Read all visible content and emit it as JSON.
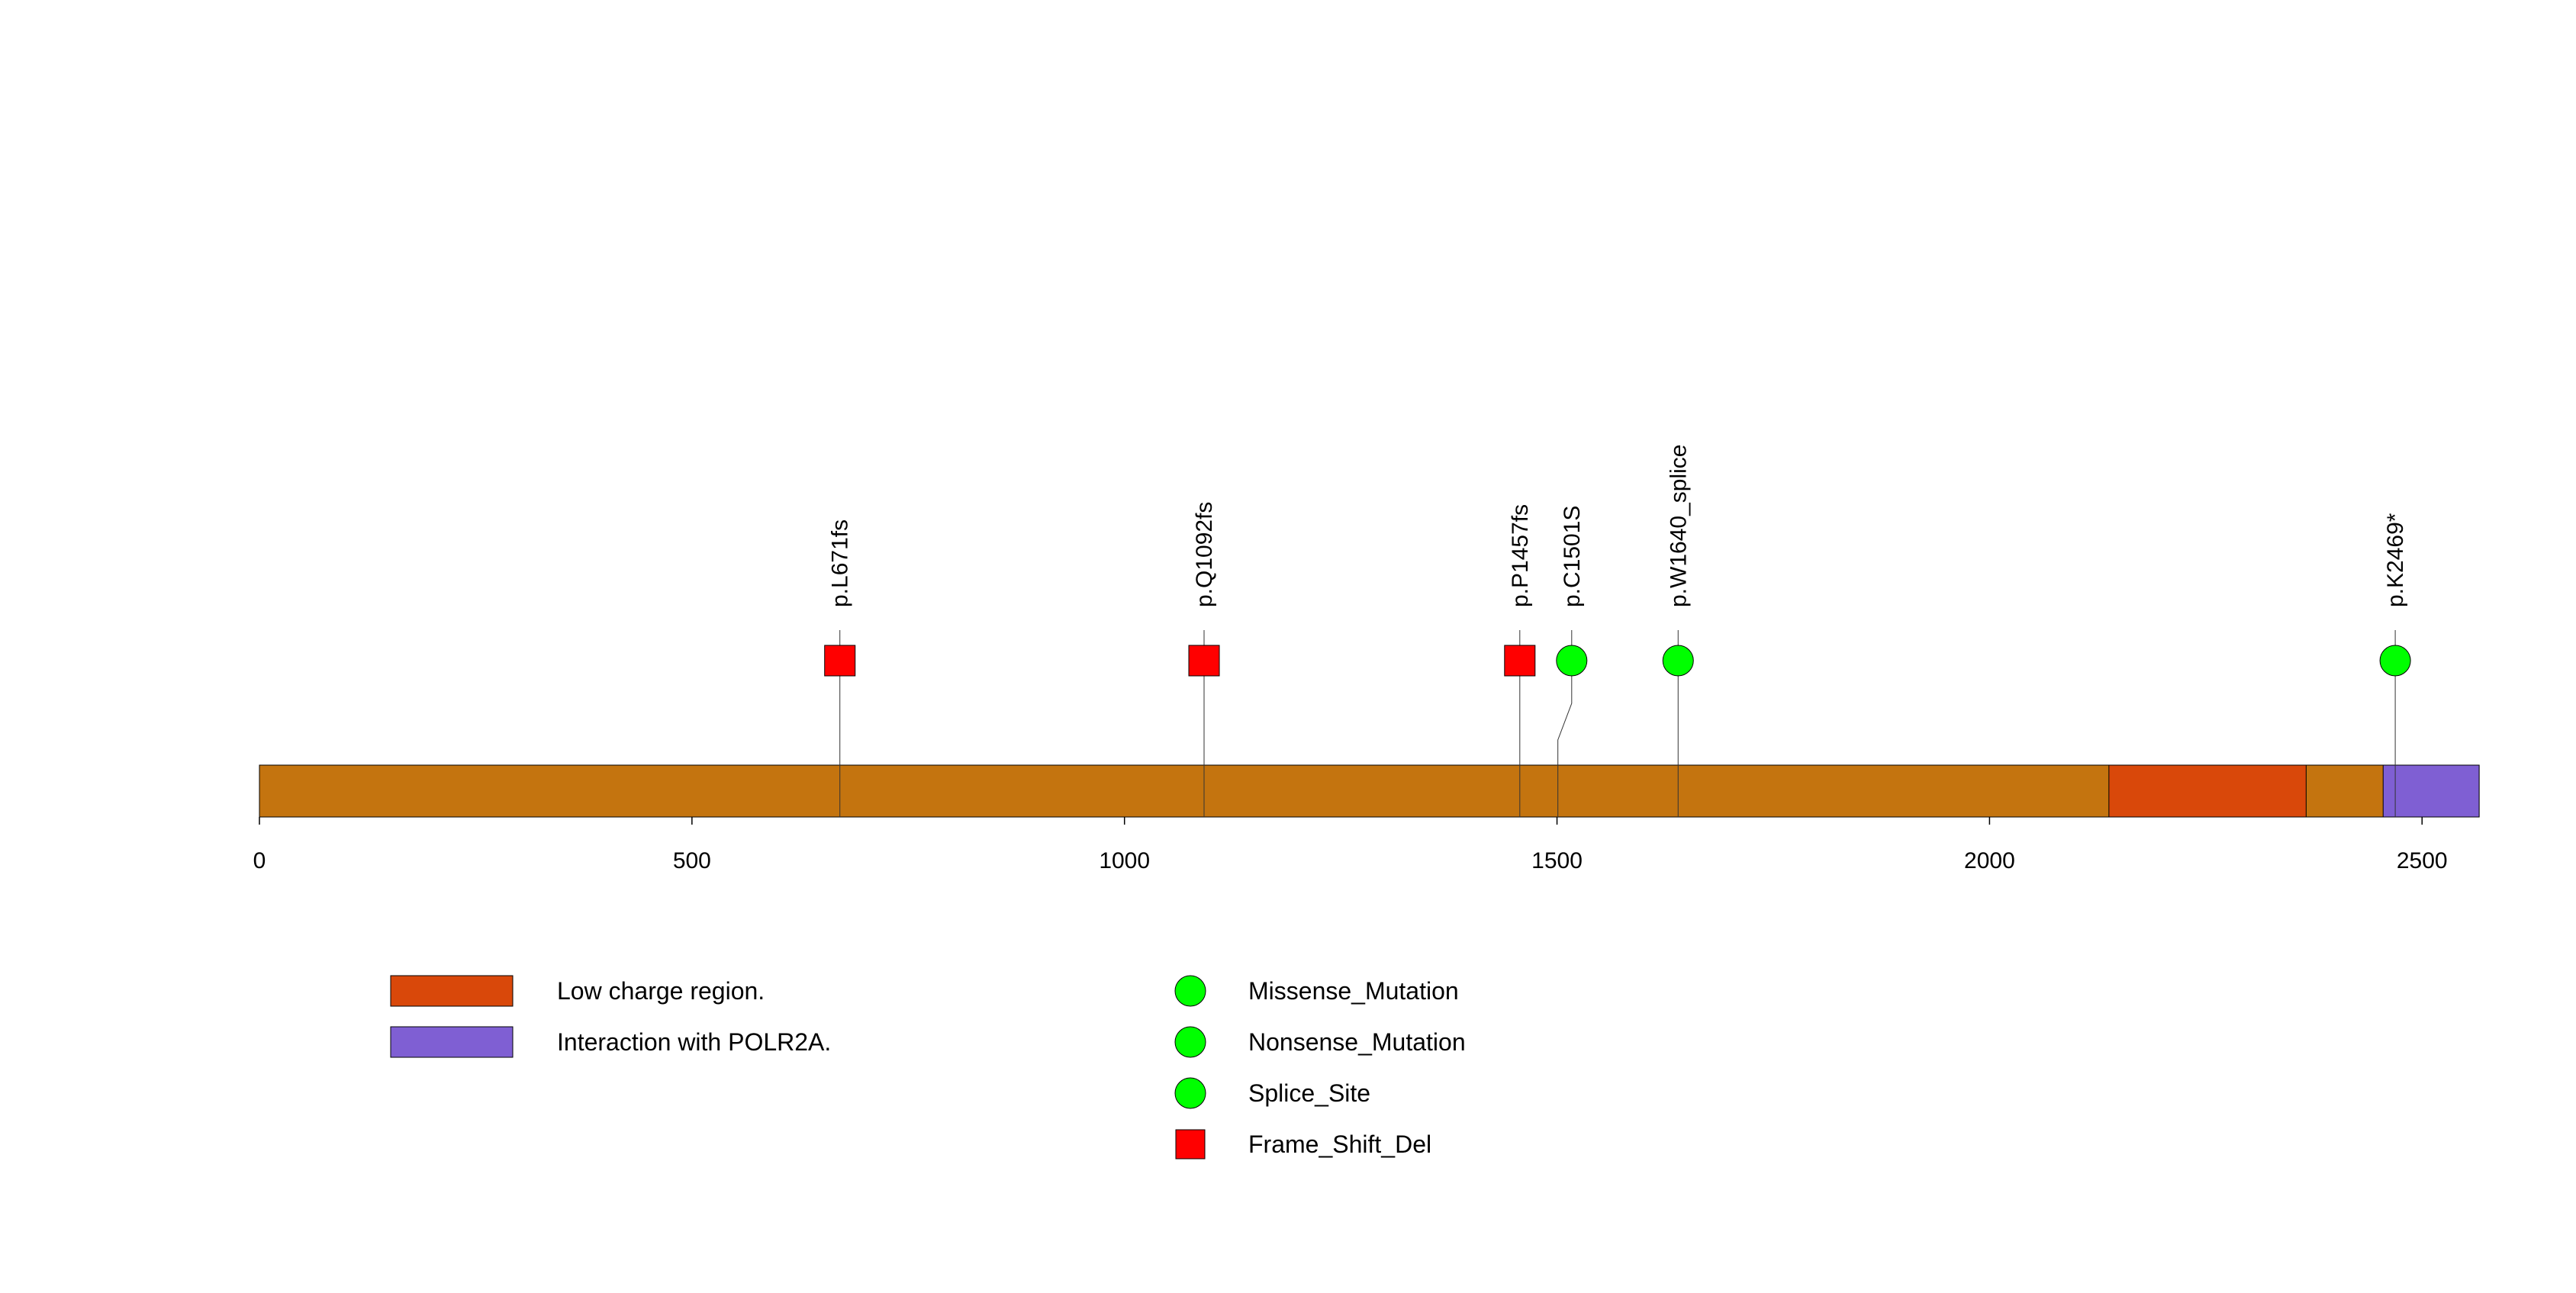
{
  "protein": {
    "length": 2566,
    "backbone_color": "#C4740F",
    "domains": [
      {
        "name": "Low charge region.",
        "start": 2138,
        "end": 2366,
        "color": "#D9480A"
      },
      {
        "name": "Interaction with POLR2A.",
        "start": 2455,
        "end": 2566,
        "color": "#7F5FD3"
      }
    ]
  },
  "axis": {
    "ticks": [
      {
        "value": 0,
        "label": "0"
      },
      {
        "value": 500,
        "label": "500"
      },
      {
        "value": 1000,
        "label": "1000"
      },
      {
        "value": 1500,
        "label": "1500"
      },
      {
        "value": 2000,
        "label": "2000"
      },
      {
        "value": 2500,
        "label": "2500"
      }
    ]
  },
  "mutations": [
    {
      "label": "p.L671fs",
      "position": 671,
      "type": "Frame_Shift_Del",
      "marker": "square",
      "color": "#FF0000"
    },
    {
      "label": "p.Q1092fs",
      "position": 1092,
      "type": "Frame_Shift_Del",
      "marker": "square",
      "color": "#FF0000"
    },
    {
      "label": "p.P1457fs",
      "position": 1457,
      "type": "Frame_Shift_Del",
      "marker": "square",
      "color": "#FF0000"
    },
    {
      "label": "p.C1501S",
      "position": 1501,
      "type": "Missense_Mutation",
      "marker": "circle",
      "color": "#00FF00"
    },
    {
      "label": "p.W1640_splice",
      "position": 1640,
      "type": "Splice_Site",
      "marker": "circle",
      "color": "#00FF00"
    },
    {
      "label": "p.K2469*",
      "position": 2469,
      "type": "Nonsense_Mutation",
      "marker": "circle",
      "color": "#00FF00"
    }
  ],
  "legend": {
    "domains": [
      {
        "label": "Low charge region.",
        "color": "#D9480A"
      },
      {
        "label": "Interaction with POLR2A.",
        "color": "#7F5FD3"
      }
    ],
    "mutation_types": [
      {
        "label": "Missense_Mutation",
        "marker": "circle",
        "color": "#00FF00"
      },
      {
        "label": "Nonsense_Mutation",
        "marker": "circle",
        "color": "#00FF00"
      },
      {
        "label": "Splice_Site",
        "marker": "circle",
        "color": "#00FF00"
      },
      {
        "label": "Frame_Shift_Del",
        "marker": "square",
        "color": "#FF0000"
      }
    ]
  }
}
